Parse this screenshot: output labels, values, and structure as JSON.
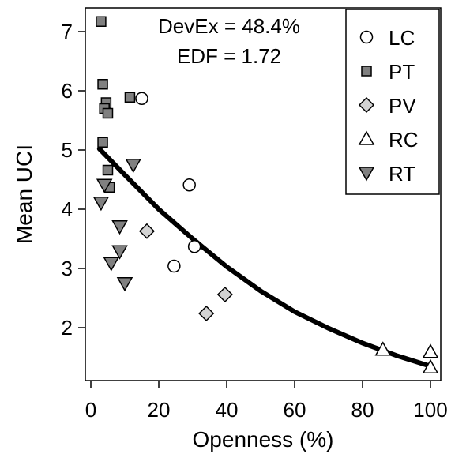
{
  "chart_data": {
    "type": "scatter",
    "xlabel": "Openness (%)",
    "ylabel": "Mean UCI",
    "xlim": [
      0,
      100
    ],
    "ylim": [
      1.4,
      7.2
    ],
    "x_ticks": [
      "0",
      "20",
      "40",
      "60",
      "80",
      "100"
    ],
    "y_ticks": [
      "2",
      "3",
      "4",
      "5",
      "6",
      "7"
    ],
    "annotations": [
      "DevEx = 48.4%",
      "EDF = 1.72"
    ],
    "legend_position": "top-right",
    "series": [
      {
        "name": "LC",
        "marker": "circle-open",
        "color": "#ffffff",
        "points": [
          [
            15,
            5.87
          ],
          [
            29,
            4.41
          ],
          [
            30.5,
            3.37
          ],
          [
            24.5,
            3.04
          ]
        ]
      },
      {
        "name": "PT",
        "marker": "square-filled",
        "color": "#808080",
        "points": [
          [
            3,
            7.17
          ],
          [
            3.5,
            6.11
          ],
          [
            4.5,
            5.8
          ],
          [
            4,
            5.7
          ],
          [
            5,
            5.62
          ],
          [
            3.5,
            5.13
          ],
          [
            5,
            4.66
          ],
          [
            5.5,
            4.37
          ],
          [
            11.5,
            5.89
          ]
        ]
      },
      {
        "name": "PV",
        "marker": "diamond-filled",
        "color": "#d3d3d3",
        "points": [
          [
            16.5,
            3.63
          ],
          [
            39.5,
            2.56
          ],
          [
            34,
            2.24
          ]
        ]
      },
      {
        "name": "RC",
        "marker": "triangle-up-open",
        "color": "#ffffff",
        "points": [
          [
            86,
            1.63
          ],
          [
            100,
            1.59
          ],
          [
            100,
            1.33
          ]
        ]
      },
      {
        "name": "RT",
        "marker": "triangle-down-filled",
        "color": "#808080",
        "points": [
          [
            4,
            4.41
          ],
          [
            12.5,
            4.75
          ],
          [
            3,
            4.11
          ],
          [
            8.5,
            3.71
          ],
          [
            8.5,
            3.29
          ],
          [
            6,
            3.09
          ],
          [
            10,
            2.75
          ]
        ]
      }
    ],
    "fit": {
      "type": "line",
      "color": "#000000",
      "x": [
        2.5,
        10,
        20,
        30,
        40,
        50,
        60,
        70,
        80,
        90,
        100
      ],
      "y": [
        5.02,
        4.58,
        4.0,
        3.5,
        3.03,
        2.62,
        2.27,
        1.99,
        1.74,
        1.53,
        1.35
      ]
    }
  }
}
